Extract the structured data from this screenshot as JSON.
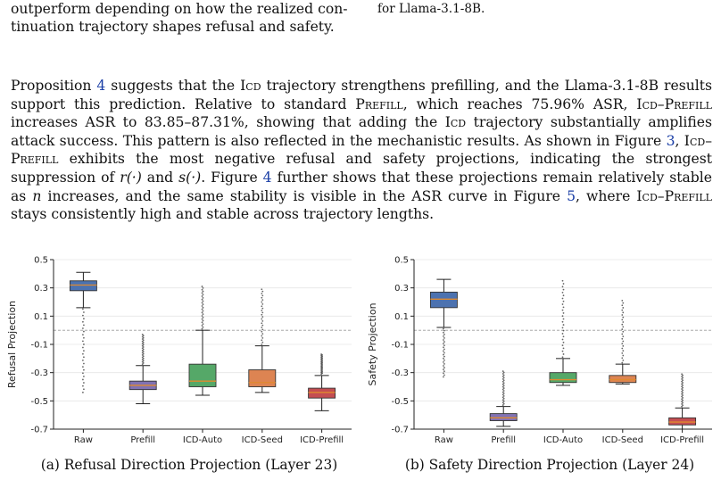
{
  "top": {
    "left_line1": "outperform depending on how the realized con-",
    "left_line2": "tinuation trajectory shapes refusal and safety.",
    "right_line": "for Llama-3.1-8B."
  },
  "paragraph": {
    "s1": "Proposition ",
    "ref_prop": "4",
    "s2": " suggests that the ",
    "icd": "Icd",
    "s3": " trajectory strengthens prefilling, and the Llama-3.1-8B results support this prediction. Relative to standard ",
    "prefill": "Prefill",
    "s4": ", which reaches 75.96% ASR, ",
    "icd_prefill_a": "Icd–Prefill",
    "s5": " increases ASR to 83.85–87.31%, showing that adding the ",
    "icd2": "Icd",
    "s6": " trajectory substantially amplifies attack success. This pattern is also reflected in the mechanistic results. As shown in Figure ",
    "ref_fig3": "3",
    "s7": ", ",
    "icd_prefill_b": "Icd–Prefill",
    "s8": " exhibits the most negative refusal and safety projections, indicating the strongest suppression of ",
    "r_fn": "r(·)",
    "s9": " and ",
    "s_fn": "s(·)",
    "s10": ". Figure ",
    "ref_fig4": "4",
    "s11": " further shows that these projections remain relatively stable as ",
    "n_var": "n",
    "s12": " increases, and the same stability is visible in the ASR curve in Figure ",
    "ref_fig5": "5",
    "s13": ", where ",
    "icd_prefill_c": "Icd–Prefill",
    "s14": " stays consistently high and stable across trajectory lengths."
  },
  "chart_data": [
    {
      "type": "boxplot",
      "ylabel": "Refusal Projection",
      "caption": "(a) Refusal Direction Projection (Layer 23)",
      "categories": [
        "Raw",
        "Prefill",
        "ICD-Auto",
        "ICD-Seed",
        "ICD-Prefill"
      ],
      "colors": [
        "#4c72b0",
        "#8172b3",
        "#55a868",
        "#dd8452",
        "#c44e52"
      ],
      "yticks": [
        "0.5",
        "0.3",
        "0.1",
        "-0.1",
        "-0.3",
        "-0.5",
        "-0.7"
      ],
      "ylim": [
        -0.7,
        0.5
      ],
      "reference_line": 0.0,
      "boxes": [
        {
          "whislo": 0.16,
          "q1": 0.28,
          "med": 0.32,
          "q3": 0.35,
          "whishi": 0.41,
          "outliers_lo": [
            -0.44,
            0.15
          ]
        },
        {
          "whislo": -0.52,
          "q1": -0.42,
          "med": -0.39,
          "q3": -0.36,
          "whishi": -0.25,
          "outliers_hi": [
            -0.24,
            -0.03
          ]
        },
        {
          "whislo": -0.46,
          "q1": -0.4,
          "med": -0.36,
          "q3": -0.24,
          "whishi": 0.0,
          "outliers_hi": [
            0.01,
            0.31
          ]
        },
        {
          "whislo": -0.44,
          "q1": -0.4,
          "med": -0.37,
          "q3": -0.28,
          "whishi": -0.11,
          "outliers_hi": [
            -0.1,
            0.29
          ]
        },
        {
          "whislo": -0.57,
          "q1": -0.48,
          "med": -0.44,
          "q3": -0.41,
          "whishi": -0.32,
          "outliers_hi": [
            -0.31,
            -0.17
          ]
        }
      ]
    },
    {
      "type": "boxplot",
      "ylabel": "Safety Projection",
      "caption": "(b) Safety Direction Projection (Layer 24)",
      "categories": [
        "Raw",
        "Prefill",
        "ICD-Auto",
        "ICD-Seed",
        "ICD-Prefill"
      ],
      "colors": [
        "#4c72b0",
        "#8172b3",
        "#55a868",
        "#dd8452",
        "#c44e52"
      ],
      "yticks": [
        "0.5",
        "0.3",
        "0.1",
        "-0.1",
        "-0.3",
        "-0.5",
        "-0.7"
      ],
      "ylim": [
        -0.7,
        0.5
      ],
      "reference_line": 0.0,
      "boxes": [
        {
          "whislo": 0.02,
          "q1": 0.16,
          "med": 0.22,
          "q3": 0.27,
          "whishi": 0.36,
          "outliers_lo": [
            -0.33,
            0.01
          ]
        },
        {
          "whislo": -0.68,
          "q1": -0.64,
          "med": -0.62,
          "q3": -0.59,
          "whishi": -0.54,
          "outliers_hi": [
            -0.53,
            -0.29
          ]
        },
        {
          "whislo": -0.39,
          "q1": -0.37,
          "med": -0.35,
          "q3": -0.3,
          "whishi": -0.2,
          "outliers_hi": [
            -0.19,
            0.35
          ]
        },
        {
          "whislo": -0.38,
          "q1": -0.37,
          "med": -0.35,
          "q3": -0.32,
          "whishi": -0.24,
          "outliers_hi": [
            -0.23,
            0.21
          ]
        },
        {
          "whislo": -0.7,
          "q1": -0.67,
          "med": -0.65,
          "q3": -0.62,
          "whishi": -0.55,
          "outliers_hi": [
            -0.54,
            -0.31
          ]
        }
      ]
    }
  ]
}
